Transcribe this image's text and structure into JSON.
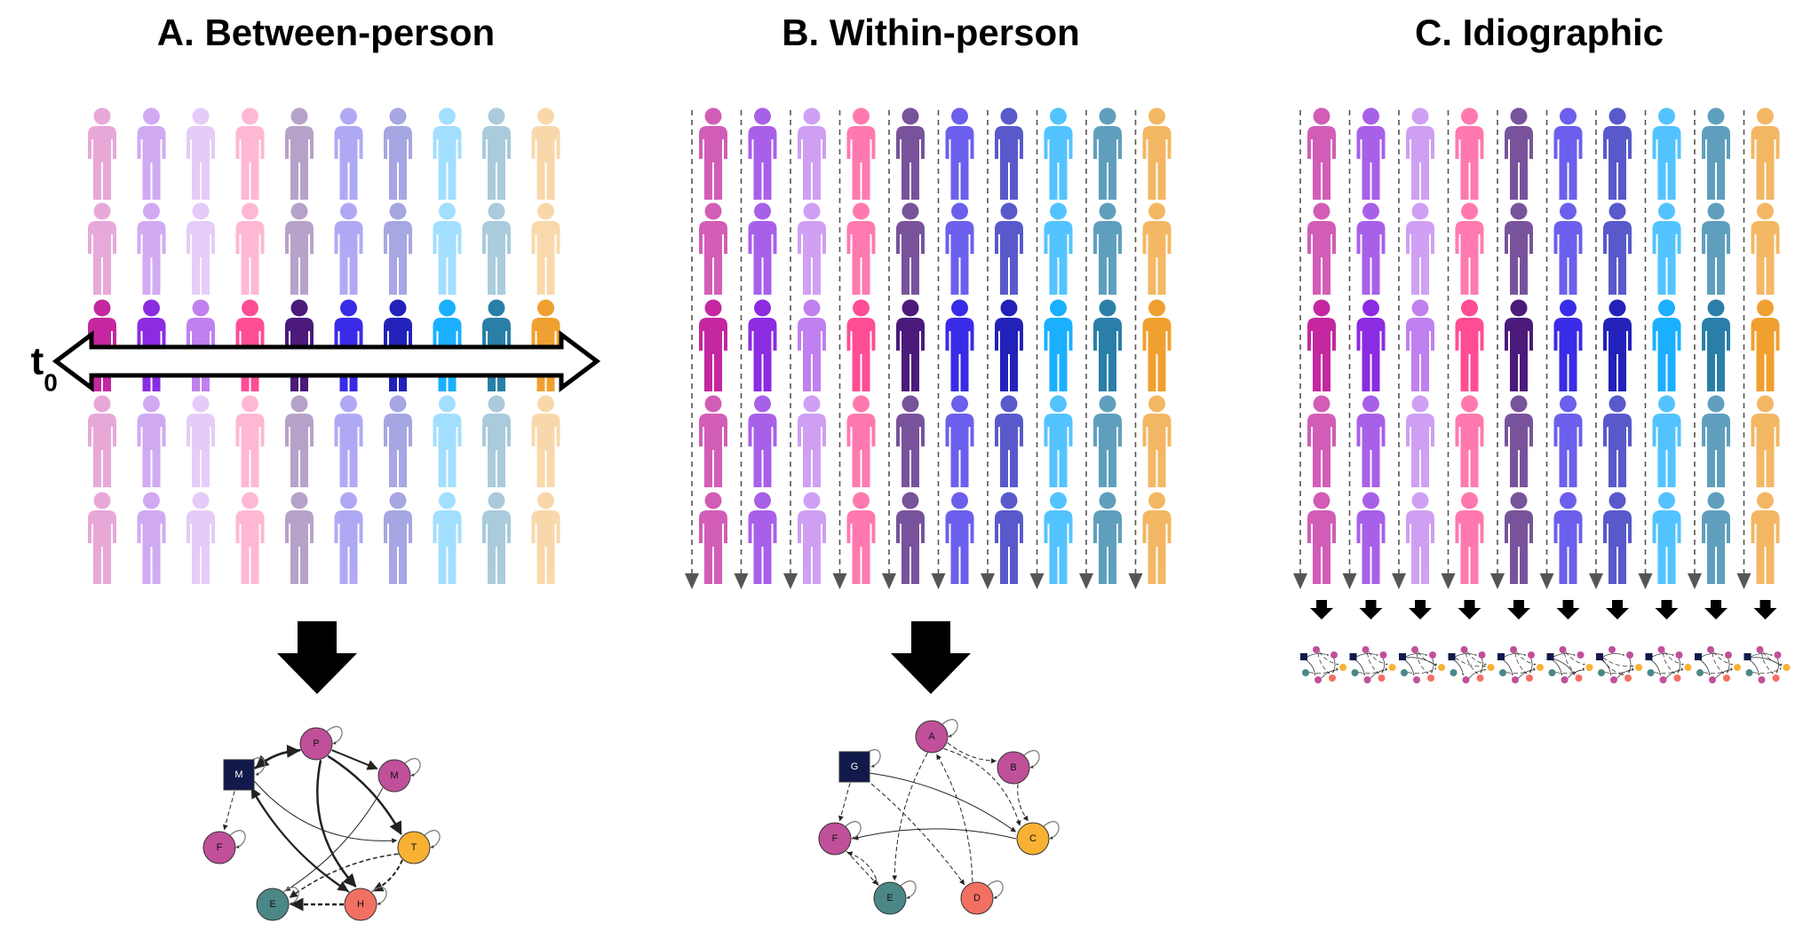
{
  "panels": [
    {
      "title": "A. Between-person",
      "time_label": "t",
      "time_subscript": "0",
      "network": {
        "nodes": [
          "M",
          "P",
          "M",
          "F",
          "T",
          "E",
          "H"
        ]
      }
    },
    {
      "title": "B. Within-person",
      "network": {
        "nodes": [
          "G",
          "A",
          "B",
          "F",
          "C",
          "E",
          "D"
        ]
      }
    },
    {
      "title": "C. Idiographic"
    }
  ]
}
